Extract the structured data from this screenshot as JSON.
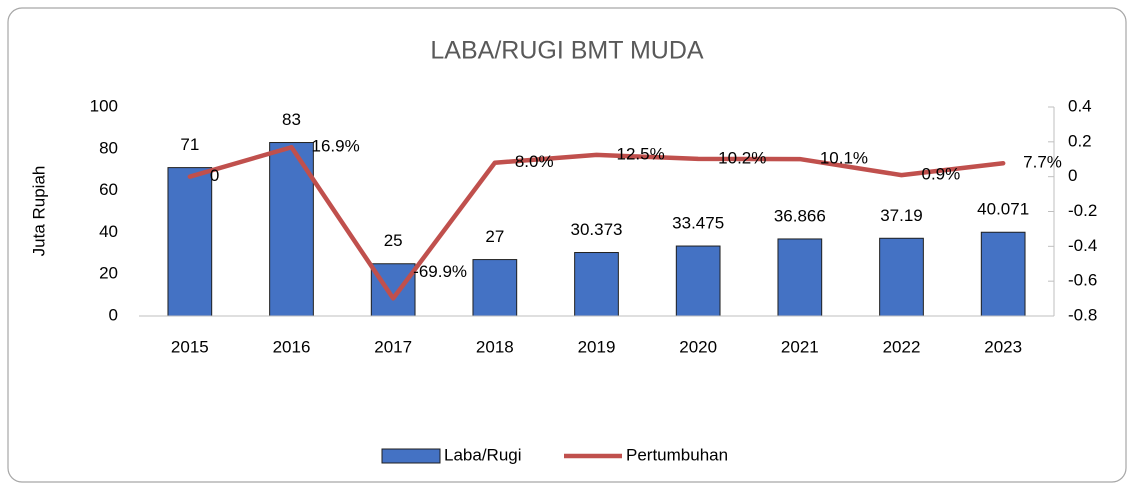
{
  "chart_data": {
    "type": "combo",
    "title": "LABA/RUGI BMT MUDA",
    "y_label": "Juta Rupiah",
    "categories": [
      "2015",
      "2016",
      "2017",
      "2018",
      "2019",
      "2020",
      "2021",
      "2022",
      "2023"
    ],
    "series": [
      {
        "name": "Laba/Rugi",
        "type": "bar",
        "color": "#4472c4",
        "values": [
          71,
          83,
          25,
          27,
          30.373,
          33.475,
          36.866,
          37.19,
          40.071
        ]
      },
      {
        "name": "Pertumbuhan",
        "type": "line",
        "axis": "y2",
        "color": "#c0504d",
        "values": [
          0,
          0.169,
          -0.699,
          0.08,
          0.125,
          0.102,
          0.101,
          0.009,
          0.077
        ],
        "value_labels": [
          "0",
          "16.9%",
          "-69.9%",
          "8.0%",
          "12.5%",
          "10.2%",
          "10.1%",
          "0.9%",
          "7.7%"
        ]
      }
    ],
    "ylim": [
      0,
      100
    ],
    "yticks": [
      0,
      20,
      40,
      60,
      80,
      100
    ],
    "y2lim": [
      -0.8,
      0.4
    ],
    "y2ticks": [
      -0.8,
      -0.6,
      -0.4,
      -0.2,
      0,
      0.2,
      0.4
    ],
    "grid": false,
    "legend": "bottom"
  }
}
